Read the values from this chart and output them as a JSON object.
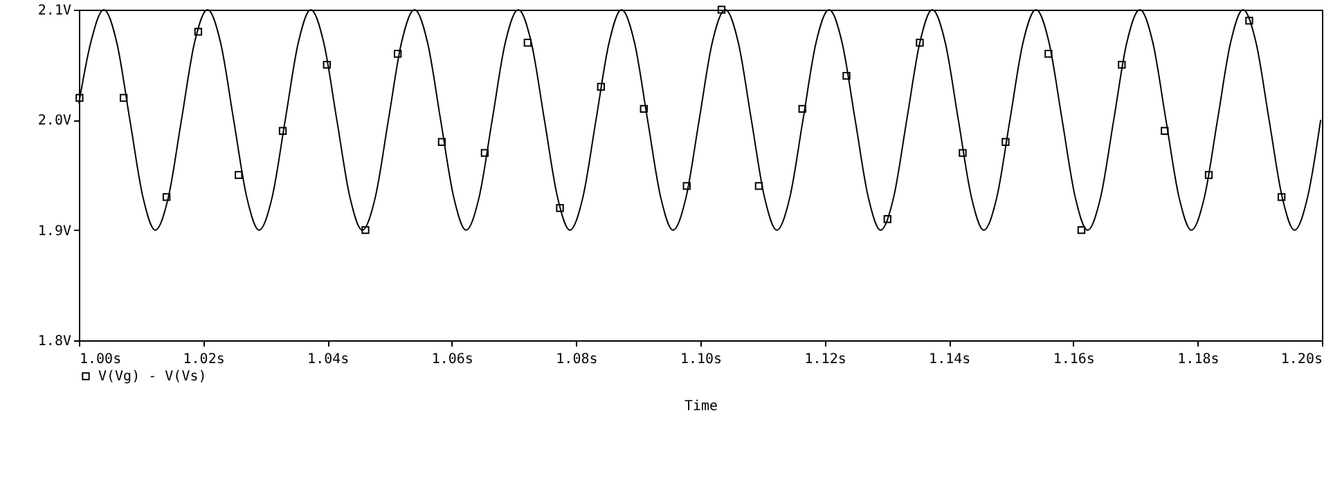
{
  "chart_data": {
    "type": "line",
    "xlabel": "Time",
    "xlim": [
      1.0,
      1.2
    ],
    "ylim": [
      1.8,
      2.1
    ],
    "xticks": [
      {
        "value": 1.0,
        "label": "1.00s"
      },
      {
        "value": 1.02,
        "label": "1.02s"
      },
      {
        "value": 1.04,
        "label": "1.04s"
      },
      {
        "value": 1.06,
        "label": "1.06s"
      },
      {
        "value": 1.08,
        "label": "1.08s"
      },
      {
        "value": 1.1,
        "label": "1.10s"
      },
      {
        "value": 1.12,
        "label": "1.12s"
      },
      {
        "value": 1.14,
        "label": "1.14s"
      },
      {
        "value": 1.16,
        "label": "1.16s"
      },
      {
        "value": 1.18,
        "label": "1.18s"
      },
      {
        "value": 1.2,
        "label": "1.20s"
      }
    ],
    "yticks": [
      {
        "value": 1.8,
        "label": "1.8V"
      },
      {
        "value": 1.9,
        "label": "1.9V"
      },
      {
        "value": 2.0,
        "label": "2.0V"
      },
      {
        "value": 2.1,
        "label": "2.1V"
      }
    ],
    "grid": false,
    "legend": "bottom left",
    "series": [
      {
        "type": "line",
        "color": "#000000",
        "line_style": "solid",
        "marker": "none",
        "x": [
          1.0,
          1.0019,
          1.004,
          1.0061,
          1.0082,
          1.0103,
          1.0123,
          1.0144,
          1.0165,
          1.0186,
          1.0207,
          1.0228,
          1.0249,
          1.027,
          1.029,
          1.0311,
          1.0332,
          1.0353,
          1.0373,
          1.0394,
          1.0415,
          1.0436,
          1.0456,
          1.0477,
          1.0498,
          1.0519,
          1.054,
          1.0561,
          1.0582,
          1.0603,
          1.0623,
          1.0644,
          1.0665,
          1.0686,
          1.0707,
          1.0728,
          1.0749,
          1.077,
          1.079,
          1.0811,
          1.0832,
          1.0853,
          1.0873,
          1.0894,
          1.0915,
          1.0936,
          1.0956,
          1.0977,
          1.0998,
          1.1019,
          1.104,
          1.1061,
          1.1082,
          1.1103,
          1.1123,
          1.1144,
          1.1165,
          1.1186,
          1.1207,
          1.1228,
          1.1249,
          1.127,
          1.129,
          1.1311,
          1.1332,
          1.1353,
          1.1373,
          1.1394,
          1.1415,
          1.1436,
          1.1456,
          1.1477,
          1.1498,
          1.1519,
          1.154,
          1.1561,
          1.1582,
          1.1603,
          1.1623,
          1.1644,
          1.1665,
          1.1686,
          1.1707,
          1.1728,
          1.1749,
          1.177,
          1.179,
          1.1811,
          1.1832,
          1.1853,
          1.1873,
          1.1894,
          1.1915,
          1.1936,
          1.1956,
          1.1977,
          1.1998
        ],
        "values": [
          2.015,
          2.07,
          2.1,
          2.07,
          2.0,
          1.93,
          1.9,
          1.93,
          2.0,
          2.07,
          2.1,
          2.07,
          2.0,
          1.93,
          1.9,
          1.93,
          2.0,
          2.07,
          2.1,
          2.07,
          2.0,
          1.93,
          1.9,
          1.93,
          2.0,
          2.07,
          2.1,
          2.07,
          2.0,
          1.93,
          1.9,
          1.93,
          2.0,
          2.07,
          2.1,
          2.07,
          2.0,
          1.93,
          1.9,
          1.93,
          2.0,
          2.07,
          2.1,
          2.07,
          2.0,
          1.93,
          1.9,
          1.93,
          2.0,
          2.07,
          2.1,
          2.07,
          2.0,
          1.93,
          1.9,
          1.93,
          2.0,
          2.07,
          2.1,
          2.07,
          2.0,
          1.93,
          1.9,
          1.93,
          2.0,
          2.07,
          2.1,
          2.07,
          2.0,
          1.93,
          1.9,
          1.93,
          2.0,
          2.07,
          2.1,
          2.07,
          2.0,
          1.93,
          1.9,
          1.93,
          2.0,
          2.07,
          2.1,
          2.07,
          2.0,
          1.93,
          1.9,
          1.93,
          2.0,
          2.07,
          2.1,
          2.07,
          2.0,
          1.93,
          1.9,
          1.93,
          2.0
        ]
      },
      {
        "type": "scatter",
        "name": "V(Vg) - V(Vs)",
        "color": "#000000",
        "marker": "square",
        "x": [
          1.0001,
          1.0072,
          1.0141,
          1.0192,
          1.0257,
          1.0328,
          1.0399,
          1.0461,
          1.0513,
          1.0584,
          1.0653,
          1.0722,
          1.0774,
          1.084,
          1.0909,
          1.0978,
          1.1034,
          1.1094,
          1.1164,
          1.1235,
          1.1301,
          1.1353,
          1.1422,
          1.1491,
          1.156,
          1.1613,
          1.1678,
          1.1747,
          1.1818,
          1.1883,
          1.1935
        ],
        "values": [
          2.02,
          2.02,
          1.93,
          2.08,
          1.95,
          1.99,
          2.05,
          1.9,
          2.06,
          1.98,
          1.97,
          2.07,
          1.92,
          2.03,
          2.01,
          1.94,
          2.1,
          1.94,
          2.01,
          2.04,
          1.91,
          2.07,
          1.97,
          1.98,
          2.06,
          1.9,
          2.05,
          1.99,
          1.95,
          2.09,
          1.93
        ]
      }
    ]
  }
}
